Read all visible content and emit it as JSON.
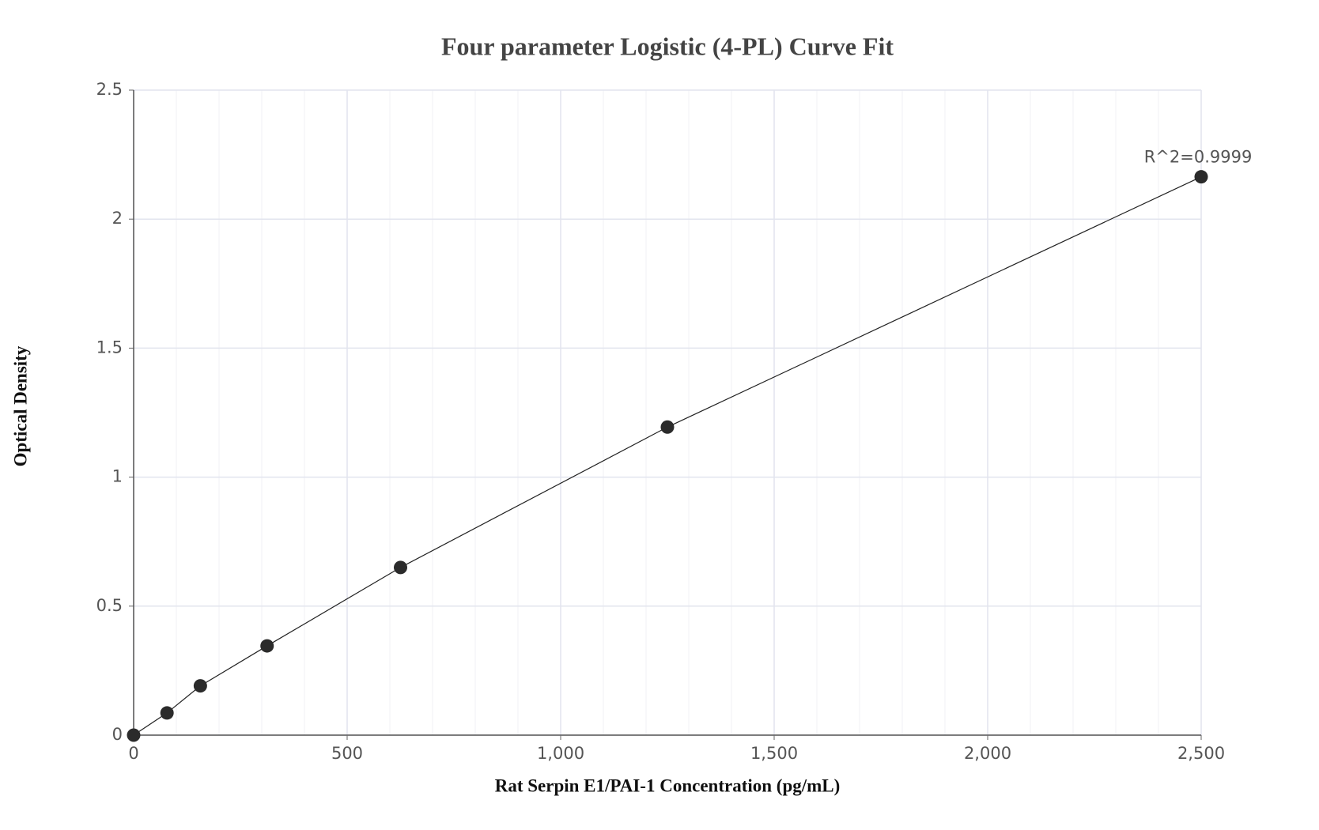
{
  "chart_data": {
    "type": "scatter",
    "title": "Four parameter Logistic (4-PL) Curve Fit",
    "x_label": "Rat Serpin E1/PAI-1 Concentration (pg/mL)",
    "y_label": "Optical Density",
    "annotation": "R^2=0.9999",
    "x": [
      0,
      78.125,
      156.25,
      312.5,
      625,
      1250,
      2500
    ],
    "series": [
      {
        "color": "#2b2b2b",
        "values": [
          0,
          0.086,
          0.191,
          0.346,
          0.65,
          1.194,
          2.164
        ]
      }
    ],
    "xlim": [
      0,
      2500
    ],
    "xticks": [
      0,
      500,
      {
        "value": 1000,
        "label": "1,000"
      },
      {
        "value": 1500,
        "label": "1,500"
      },
      {
        "value": 2000,
        "label": "2,000"
      },
      {
        "value": 2500,
        "label": "2,500"
      }
    ],
    "ylim": [
      0,
      2.5
    ],
    "yticks": [
      0,
      0.5,
      1,
      1.5,
      2,
      2.5
    ],
    "grid": true
  }
}
